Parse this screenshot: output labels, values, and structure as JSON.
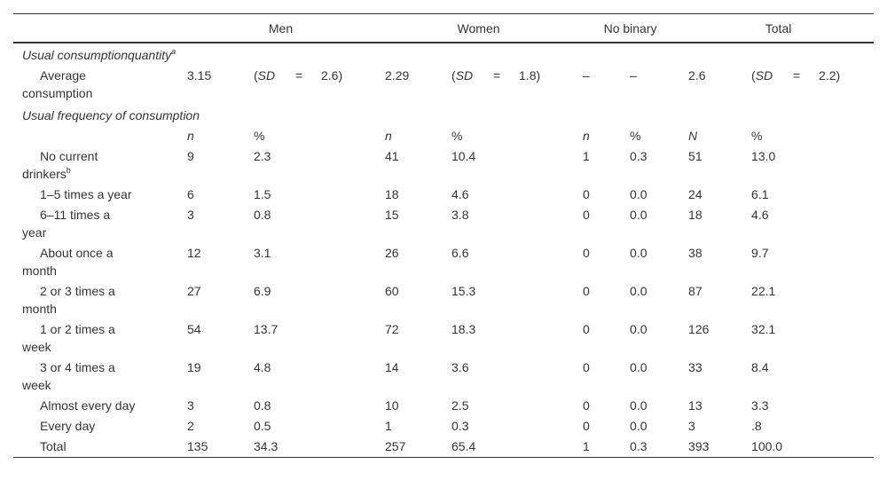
{
  "table": {
    "header": [
      "Men",
      "Women",
      "No binary",
      "Total"
    ],
    "sections": [
      {
        "title": "Usual consumptionquantity",
        "title_sup": "a",
        "rows": [
          {
            "label": [
              "Average",
              "consumption"
            ],
            "cells": [
              "3.15",
              {
                "open": "(",
                "label": "SD",
                "eq": "=",
                "value": "2.6)"
              },
              "2.29",
              {
                "open": "(",
                "label": "SD",
                "eq": "=",
                "value": "1.8)"
              },
              "–",
              "–",
              "2.6",
              {
                "open": "(",
                "label": "SD",
                "eq": "=",
                "value": "2.2)"
              }
            ]
          }
        ]
      },
      {
        "title": "Usual frequency of consumption",
        "subheader": [
          "n",
          "%",
          "n",
          "%",
          "n",
          "%",
          "N",
          "%"
        ],
        "rows": [
          {
            "label": [
              "No current",
              "drinkers"
            ],
            "label_sup": "b",
            "cells": [
              "9",
              "2.3",
              "41",
              "10.4",
              "1",
              "0.3",
              "51",
              "13.0"
            ]
          },
          {
            "label": [
              "1–5 times a year"
            ],
            "cells": [
              "6",
              "1.5",
              "18",
              "4.6",
              "0",
              "0.0",
              "24",
              "6.1"
            ]
          },
          {
            "label": [
              "6–11 times a",
              "year"
            ],
            "cells": [
              "3",
              "0.8",
              "15",
              "3.8",
              "0",
              "0.0",
              "18",
              "4.6"
            ]
          },
          {
            "label": [
              "About once a",
              "month"
            ],
            "cells": [
              "12",
              "3.1",
              "26",
              "6.6",
              "0",
              "0.0",
              "38",
              "9.7"
            ]
          },
          {
            "label": [
              "2 or 3 times a",
              "month"
            ],
            "cells": [
              "27",
              "6.9",
              "60",
              "15.3",
              "0",
              "0.0",
              "87",
              "22.1"
            ]
          },
          {
            "label": [
              "1 or 2 times a",
              "week"
            ],
            "cells": [
              "54",
              "13.7",
              "72",
              "18.3",
              "0",
              "0.0",
              "126",
              "32.1"
            ]
          },
          {
            "label": [
              "3 or 4 times a",
              "week"
            ],
            "cells": [
              "19",
              "4.8",
              "14",
              "3.6",
              "0",
              "0.0",
              "33",
              "8.4"
            ]
          },
          {
            "label": [
              "Almost every day"
            ],
            "cells": [
              "3",
              "0.8",
              "10",
              "2.5",
              "0",
              "0.0",
              "13",
              "3.3"
            ]
          },
          {
            "label": [
              "Every day"
            ],
            "cells": [
              "2",
              "0.5",
              "1",
              "0.3",
              "0",
              "0.0",
              "3",
              ".8"
            ]
          },
          {
            "label": [
              "Total"
            ],
            "cells": [
              "135",
              "34.3",
              "257",
              "65.4",
              "1",
              "0.3",
              "393",
              "100.0"
            ]
          }
        ]
      }
    ]
  }
}
